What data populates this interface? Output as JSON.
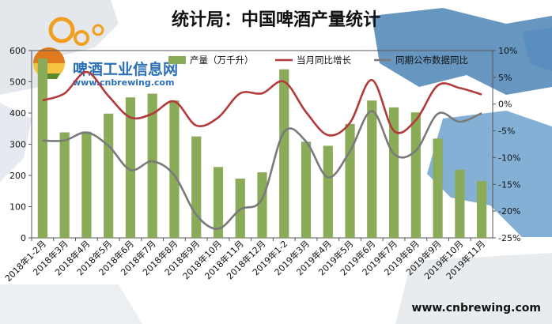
{
  "chart_data": {
    "type": "bar+line",
    "title": "统计局：中国啤酒产量统计",
    "categories": [
      "2018年1-2月",
      "2018年3月",
      "2018年4月",
      "2018年5月",
      "2018年6月",
      "2018年7月",
      "2018年8月",
      "2018年9月",
      "2018年10月",
      "2018年11月",
      "2018年12月",
      "2019年1-2",
      "2019年3月",
      "2019年4月",
      "2019年5月",
      "2019年6月",
      "2019年7月",
      "2019年8月",
      "2019年9月",
      "2019年10月",
      "2019年11月"
    ],
    "series": [
      {
        "name": "产量（万千升）",
        "type": "bar",
        "axis": "left",
        "color": "#8aab57",
        "values": [
          575,
          338,
          340,
          398,
          450,
          462,
          440,
          325,
          227,
          190,
          210,
          540,
          308,
          295,
          365,
          440,
          418,
          402,
          318,
          218,
          182
        ]
      },
      {
        "name": "当月同比增长",
        "type": "line",
        "axis": "right",
        "color": "#b23a3a",
        "values": [
          0.7,
          2.0,
          6.0,
          1.5,
          -2.5,
          -1.8,
          0.5,
          -4.0,
          -2.5,
          2.0,
          2.0,
          4.2,
          -1.5,
          -5.8,
          -3.5,
          4.5,
          -5.0,
          -3.0,
          3.5,
          3.0,
          1.8
        ]
      },
      {
        "name": "同期公布数据同比",
        "type": "line",
        "axis": "right",
        "color": "#7a7a7a",
        "values": [
          -6.8,
          -6.8,
          -5.3,
          -7.8,
          -12.3,
          -10.7,
          -13.3,
          -20.7,
          -23.3,
          -19.7,
          -17.7,
          -5.2,
          -7.0,
          -13.7,
          -8.8,
          -1.3,
          -9.3,
          -8.7,
          -1.8,
          -3.3,
          -1.7
        ]
      }
    ],
    "y_left": {
      "min": 0,
      "max": 600,
      "step": 100,
      "ticks": [
        "0",
        "100",
        "200",
        "300",
        "400",
        "500",
        "600"
      ]
    },
    "y_right": {
      "min": -25,
      "max": 10,
      "step": 5,
      "ticks": [
        "-25%",
        "-20%",
        "-15%",
        "-10%",
        "-5%",
        "0%",
        "5%",
        "10%"
      ]
    },
    "legend": "top"
  },
  "watermark": {
    "cn": "啤酒工业信息网",
    "en": "www.cnbrewing.com"
  },
  "footer_url": "www.cnbrewing.com"
}
